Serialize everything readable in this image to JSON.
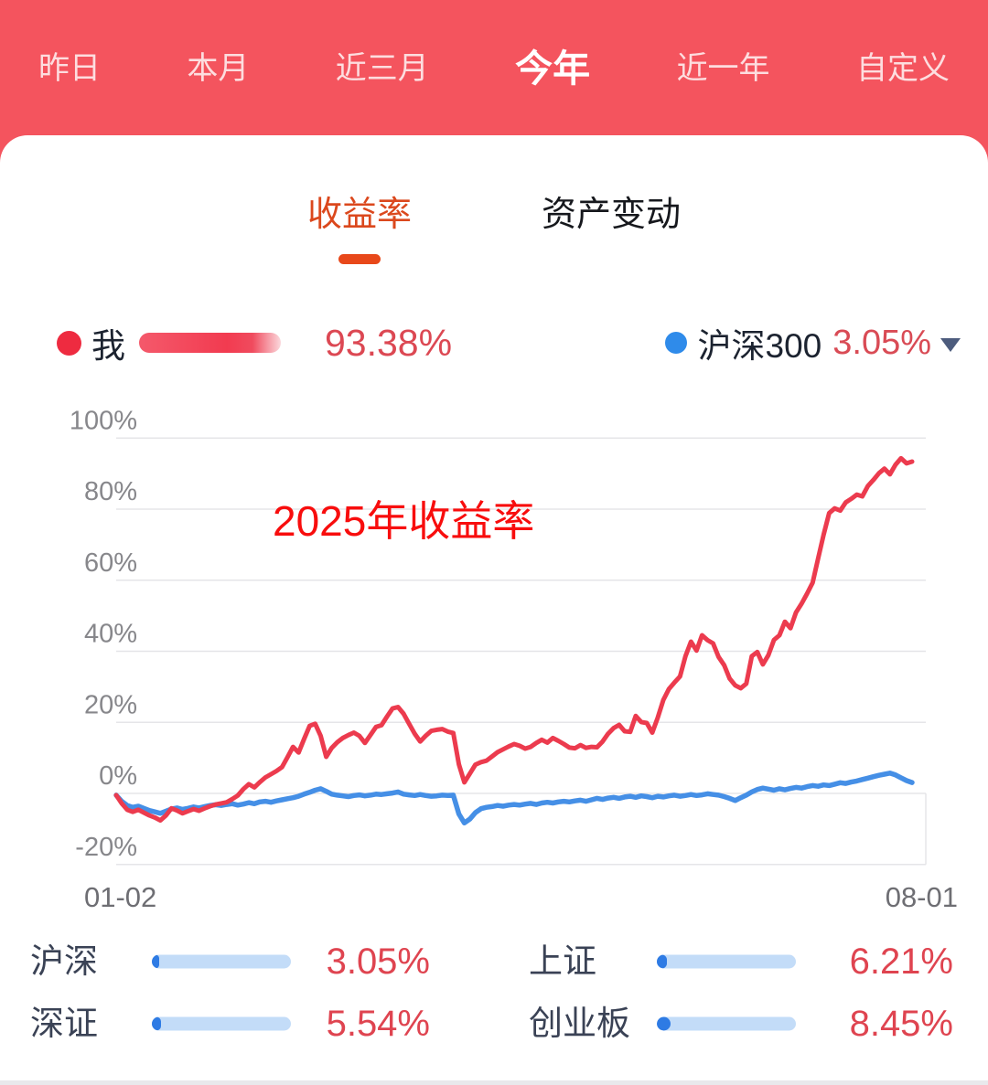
{
  "header": {
    "bg_color": "#F4545E",
    "tabs": [
      {
        "label": "昨日",
        "selected": false
      },
      {
        "label": "本月",
        "selected": false
      },
      {
        "label": "近三月",
        "selected": false
      },
      {
        "label": "今年",
        "selected": true
      },
      {
        "label": "近一年",
        "selected": false
      },
      {
        "label": "自定义",
        "selected": false
      }
    ]
  },
  "card": {
    "tabs": [
      {
        "label": "收益率",
        "selected": true
      },
      {
        "label": "资产变动",
        "selected": false
      }
    ],
    "legend": {
      "me_label": "我",
      "me_value": "93.38%",
      "benchmark_label": "沪深300",
      "benchmark_value": "3.05%"
    },
    "annotation": "2025年收益率"
  },
  "chart_data": {
    "type": "line",
    "title": "2025年收益率",
    "x_labels": [
      "01-02",
      "08-01"
    ],
    "yticks": [
      100,
      80,
      60,
      40,
      20,
      0,
      -20
    ],
    "ylim": [
      -20,
      100
    ],
    "y_unit": "%",
    "grid": true,
    "grid_color": "#E5E5E8",
    "axis_text_color": "#87878B",
    "x_text_color": "#6E6E73",
    "legend_position": "top",
    "series": [
      {
        "name": "我",
        "color": "#EC3B4E",
        "width": 5,
        "name_attr": "my-return-line",
        "end_value": 93.38,
        "values": [
          -0.5,
          -2.8,
          -4.6,
          -5.2,
          -4.6,
          -5.4,
          -6.2,
          -6.8,
          -7.6,
          -6.2,
          -4.2,
          -4.8,
          -5.6,
          -5.0,
          -4.4,
          -4.9,
          -4.2,
          -3.6,
          -3.1,
          -2.8,
          -2.5,
          -1.6,
          -0.6,
          1.2,
          2.6,
          1.7,
          3.2,
          4.5,
          5.4,
          6.3,
          7.4,
          10.2,
          13.1,
          11.5,
          15.3,
          19.0,
          19.6,
          16.2,
          10.3,
          12.8,
          14.4,
          15.6,
          16.4,
          17.1,
          16.2,
          14.2,
          16.4,
          18.7,
          19.2,
          21.6,
          23.9,
          24.3,
          22.4,
          19.6,
          16.8,
          14.6,
          16.2,
          17.6,
          17.9,
          18.1,
          17.4,
          17.0,
          8.2,
          3.1,
          5.6,
          8.1,
          8.8,
          9.2,
          10.4,
          11.6,
          12.4,
          13.2,
          13.9,
          13.4,
          12.6,
          13.1,
          14.2,
          15.1,
          14.3,
          15.6,
          14.8,
          13.9,
          12.9,
          12.7,
          13.6,
          12.8,
          13.1,
          13.0,
          14.6,
          16.8,
          18.4,
          19.3,
          17.5,
          17.3,
          21.8,
          20.1,
          19.8,
          17.1,
          21.4,
          26.3,
          29.4,
          31.2,
          32.9,
          38.6,
          42.7,
          40.2,
          44.5,
          43.1,
          42.2,
          38.4,
          36.1,
          32.3,
          30.4,
          29.6,
          30.9,
          38.6,
          39.8,
          36.3,
          38.9,
          43.2,
          44.5,
          48.3,
          46.5,
          50.9,
          53.4,
          56.2,
          59.3,
          66.1,
          72.8,
          78.9,
          80.2,
          79.6,
          81.9,
          82.9,
          84.1,
          83.6,
          86.5,
          88.2,
          90.1,
          91.4,
          89.8,
          92.5,
          94.3,
          92.9,
          93.38
        ]
      },
      {
        "name": "沪深300",
        "color": "#458FE6",
        "width": 5.5,
        "name_attr": "benchmark-line",
        "end_value": 3.05,
        "values": [
          -0.5,
          -2.2,
          -3.4,
          -3.9,
          -3.6,
          -4.2,
          -4.8,
          -5.2,
          -5.6,
          -5.0,
          -4.4,
          -4.1,
          -4.5,
          -4.2,
          -3.8,
          -4.1,
          -3.7,
          -3.4,
          -3.2,
          -3.4,
          -3.1,
          -2.9,
          -3.3,
          -3.0,
          -2.6,
          -2.9,
          -2.4,
          -2.2,
          -2.5,
          -2.1,
          -1.8,
          -1.5,
          -1.2,
          -0.8,
          -0.2,
          0.3,
          0.9,
          1.3,
          0.6,
          -0.2,
          -0.5,
          -0.7,
          -0.9,
          -0.6,
          -0.4,
          -0.7,
          -0.5,
          -0.2,
          -0.3,
          -0.1,
          0.1,
          0.4,
          -0.2,
          -0.4,
          -0.6,
          -0.3,
          -0.6,
          -0.8,
          -0.7,
          -0.5,
          -0.6,
          -0.5,
          -5.8,
          -8.3,
          -7.2,
          -5.4,
          -4.3,
          -3.9,
          -3.7,
          -3.4,
          -3.6,
          -3.3,
          -3.1,
          -3.3,
          -3.0,
          -2.8,
          -3.1,
          -2.7,
          -2.5,
          -2.7,
          -2.4,
          -2.2,
          -2.4,
          -2.1,
          -1.9,
          -2.2,
          -1.8,
          -1.4,
          -1.7,
          -1.3,
          -1.1,
          -1.4,
          -1.0,
          -0.8,
          -1.1,
          -0.7,
          -0.9,
          -1.2,
          -0.8,
          -1.0,
          -0.7,
          -0.5,
          -0.8,
          -0.6,
          -0.3,
          -0.6,
          -0.4,
          -0.1,
          -0.3,
          -0.5,
          -0.9,
          -1.4,
          -2.0,
          -1.2,
          -0.5,
          0.4,
          1.1,
          1.5,
          1.2,
          0.9,
          1.3,
          1.0,
          1.4,
          1.7,
          1.5,
          1.9,
          2.2,
          2.0,
          2.4,
          2.2,
          2.6,
          3.0,
          2.8,
          3.2,
          3.5,
          3.9,
          4.3,
          4.7,
          5.1,
          5.4,
          5.7,
          5.2,
          4.4,
          3.6,
          3.05
        ]
      }
    ]
  },
  "footer": {
    "items": [
      {
        "label": "沪深",
        "value": "3.05%",
        "pct": 3.05
      },
      {
        "label": "上证",
        "value": "6.21%",
        "pct": 6.21
      },
      {
        "label": "深证",
        "value": "5.54%",
        "pct": 5.54
      },
      {
        "label": "创业板",
        "value": "8.45%",
        "pct": 8.45
      }
    ]
  }
}
